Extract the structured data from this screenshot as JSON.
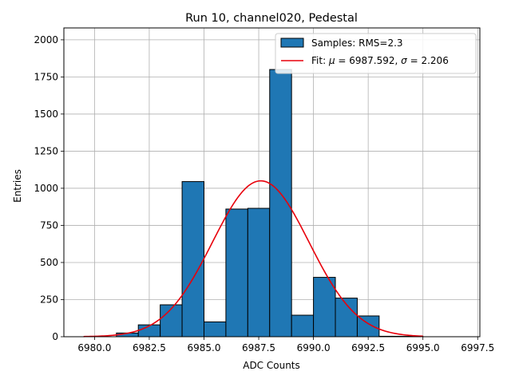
{
  "chart_data": {
    "type": "bar",
    "title": "Run 10, channel020, Pedestal",
    "xlabel": "ADC Counts",
    "ylabel": "Entries",
    "xlim": [
      6978.6,
      6997.6
    ],
    "ylim": [
      0,
      2080
    ],
    "xticks": [
      6980.0,
      6982.5,
      6985.0,
      6987.5,
      6990.0,
      6992.5,
      6995.0,
      6997.5
    ],
    "xtick_labels": [
      "6980.0",
      "6982.5",
      "6985.0",
      "6987.5",
      "6990.0",
      "6992.5",
      "6995.0",
      "6997.5"
    ],
    "yticks": [
      0,
      250,
      500,
      750,
      1000,
      1250,
      1500,
      1750,
      2000
    ],
    "ytick_labels": [
      "0",
      "250",
      "500",
      "750",
      "1000",
      "1250",
      "1500",
      "1750",
      "2000"
    ],
    "grid": true,
    "legend_placement": "top-right",
    "bins": [
      {
        "lo": 6981.0,
        "hi": 6982.0,
        "count": 25
      },
      {
        "lo": 6982.0,
        "hi": 6983.0,
        "count": 80
      },
      {
        "lo": 6983.0,
        "hi": 6984.0,
        "count": 215
      },
      {
        "lo": 6984.0,
        "hi": 6985.0,
        "count": 1045
      },
      {
        "lo": 6985.0,
        "hi": 6986.0,
        "count": 100
      },
      {
        "lo": 6986.0,
        "hi": 6987.0,
        "count": 860
      },
      {
        "lo": 6987.0,
        "hi": 6988.0,
        "count": 865
      },
      {
        "lo": 6988.0,
        "hi": 6989.0,
        "count": 1800
      },
      {
        "lo": 6989.0,
        "hi": 6990.0,
        "count": 145
      },
      {
        "lo": 6990.0,
        "hi": 6991.0,
        "count": 400
      },
      {
        "lo": 6991.0,
        "hi": 6992.0,
        "count": 260
      },
      {
        "lo": 6992.0,
        "hi": 6993.0,
        "count": 140
      },
      {
        "lo": 6993.0,
        "hi": 6994.0,
        "count": 3
      },
      {
        "lo": 6994.0,
        "hi": 6995.0,
        "count": 3
      }
    ],
    "fit": {
      "mu": 6987.592,
      "sigma": 2.206,
      "amplitude": 1050,
      "x_range": [
        6979.5,
        6995.0
      ]
    },
    "series": [
      {
        "name": "Samples: RMS=2.3",
        "kind": "histogram",
        "color": "#1f77b4",
        "edge_color": "#000000"
      },
      {
        "name": "Fit",
        "label_mu": "6987.592",
        "label_sigma": "2.206",
        "kind": "line",
        "color": "#e8000b"
      }
    ]
  }
}
